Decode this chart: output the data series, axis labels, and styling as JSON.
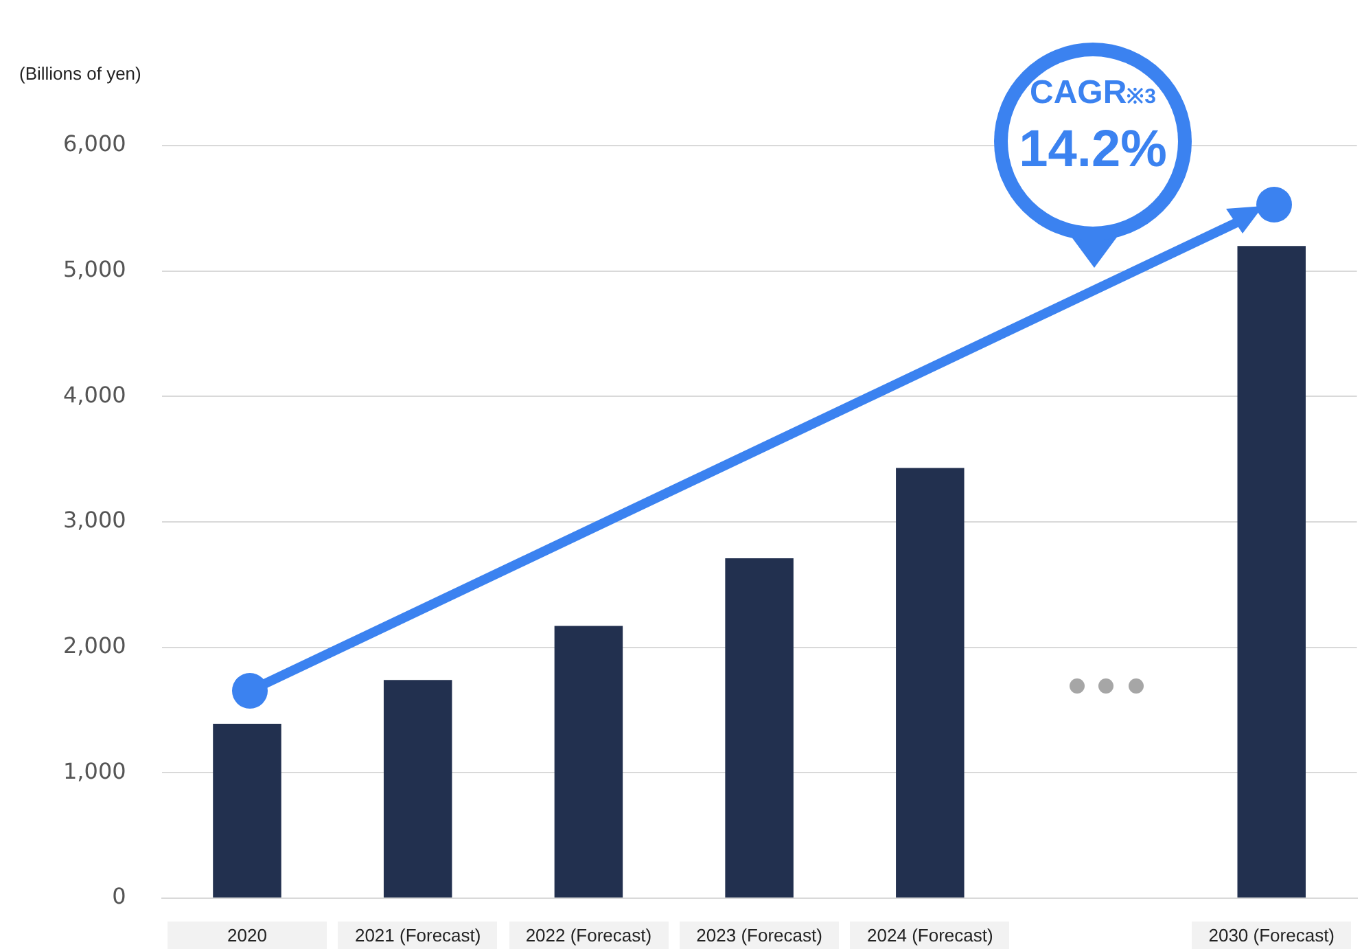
{
  "chart_data": {
    "type": "bar",
    "ylabel": "(Billions of yen)",
    "categories": [
      "2020",
      "2021 (Forecast)",
      "2022 (Forecast)",
      "2023 (Forecast)",
      "2024 (Forecast)",
      null,
      "2030 (Forecast)"
    ],
    "values": [
      1390,
      1740,
      2170,
      2710,
      3430,
      null,
      5200
    ],
    "color": "#22304f",
    "ylim": [
      0,
      6000
    ],
    "yticks": [
      {
        "value": 0,
        "label": "0"
      },
      {
        "value": 1000,
        "label": "1,000"
      },
      {
        "value": 2000,
        "label": "2,000"
      },
      {
        "value": 3000,
        "label": "3,000"
      },
      {
        "value": 4000,
        "label": "4,000"
      },
      {
        "value": 5000,
        "label": "5,000"
      },
      {
        "value": 6000,
        "label": "6,000"
      }
    ],
    "grid": "y",
    "legend": false,
    "annotations": [
      "CAGR※3",
      "14.2%"
    ]
  }
}
